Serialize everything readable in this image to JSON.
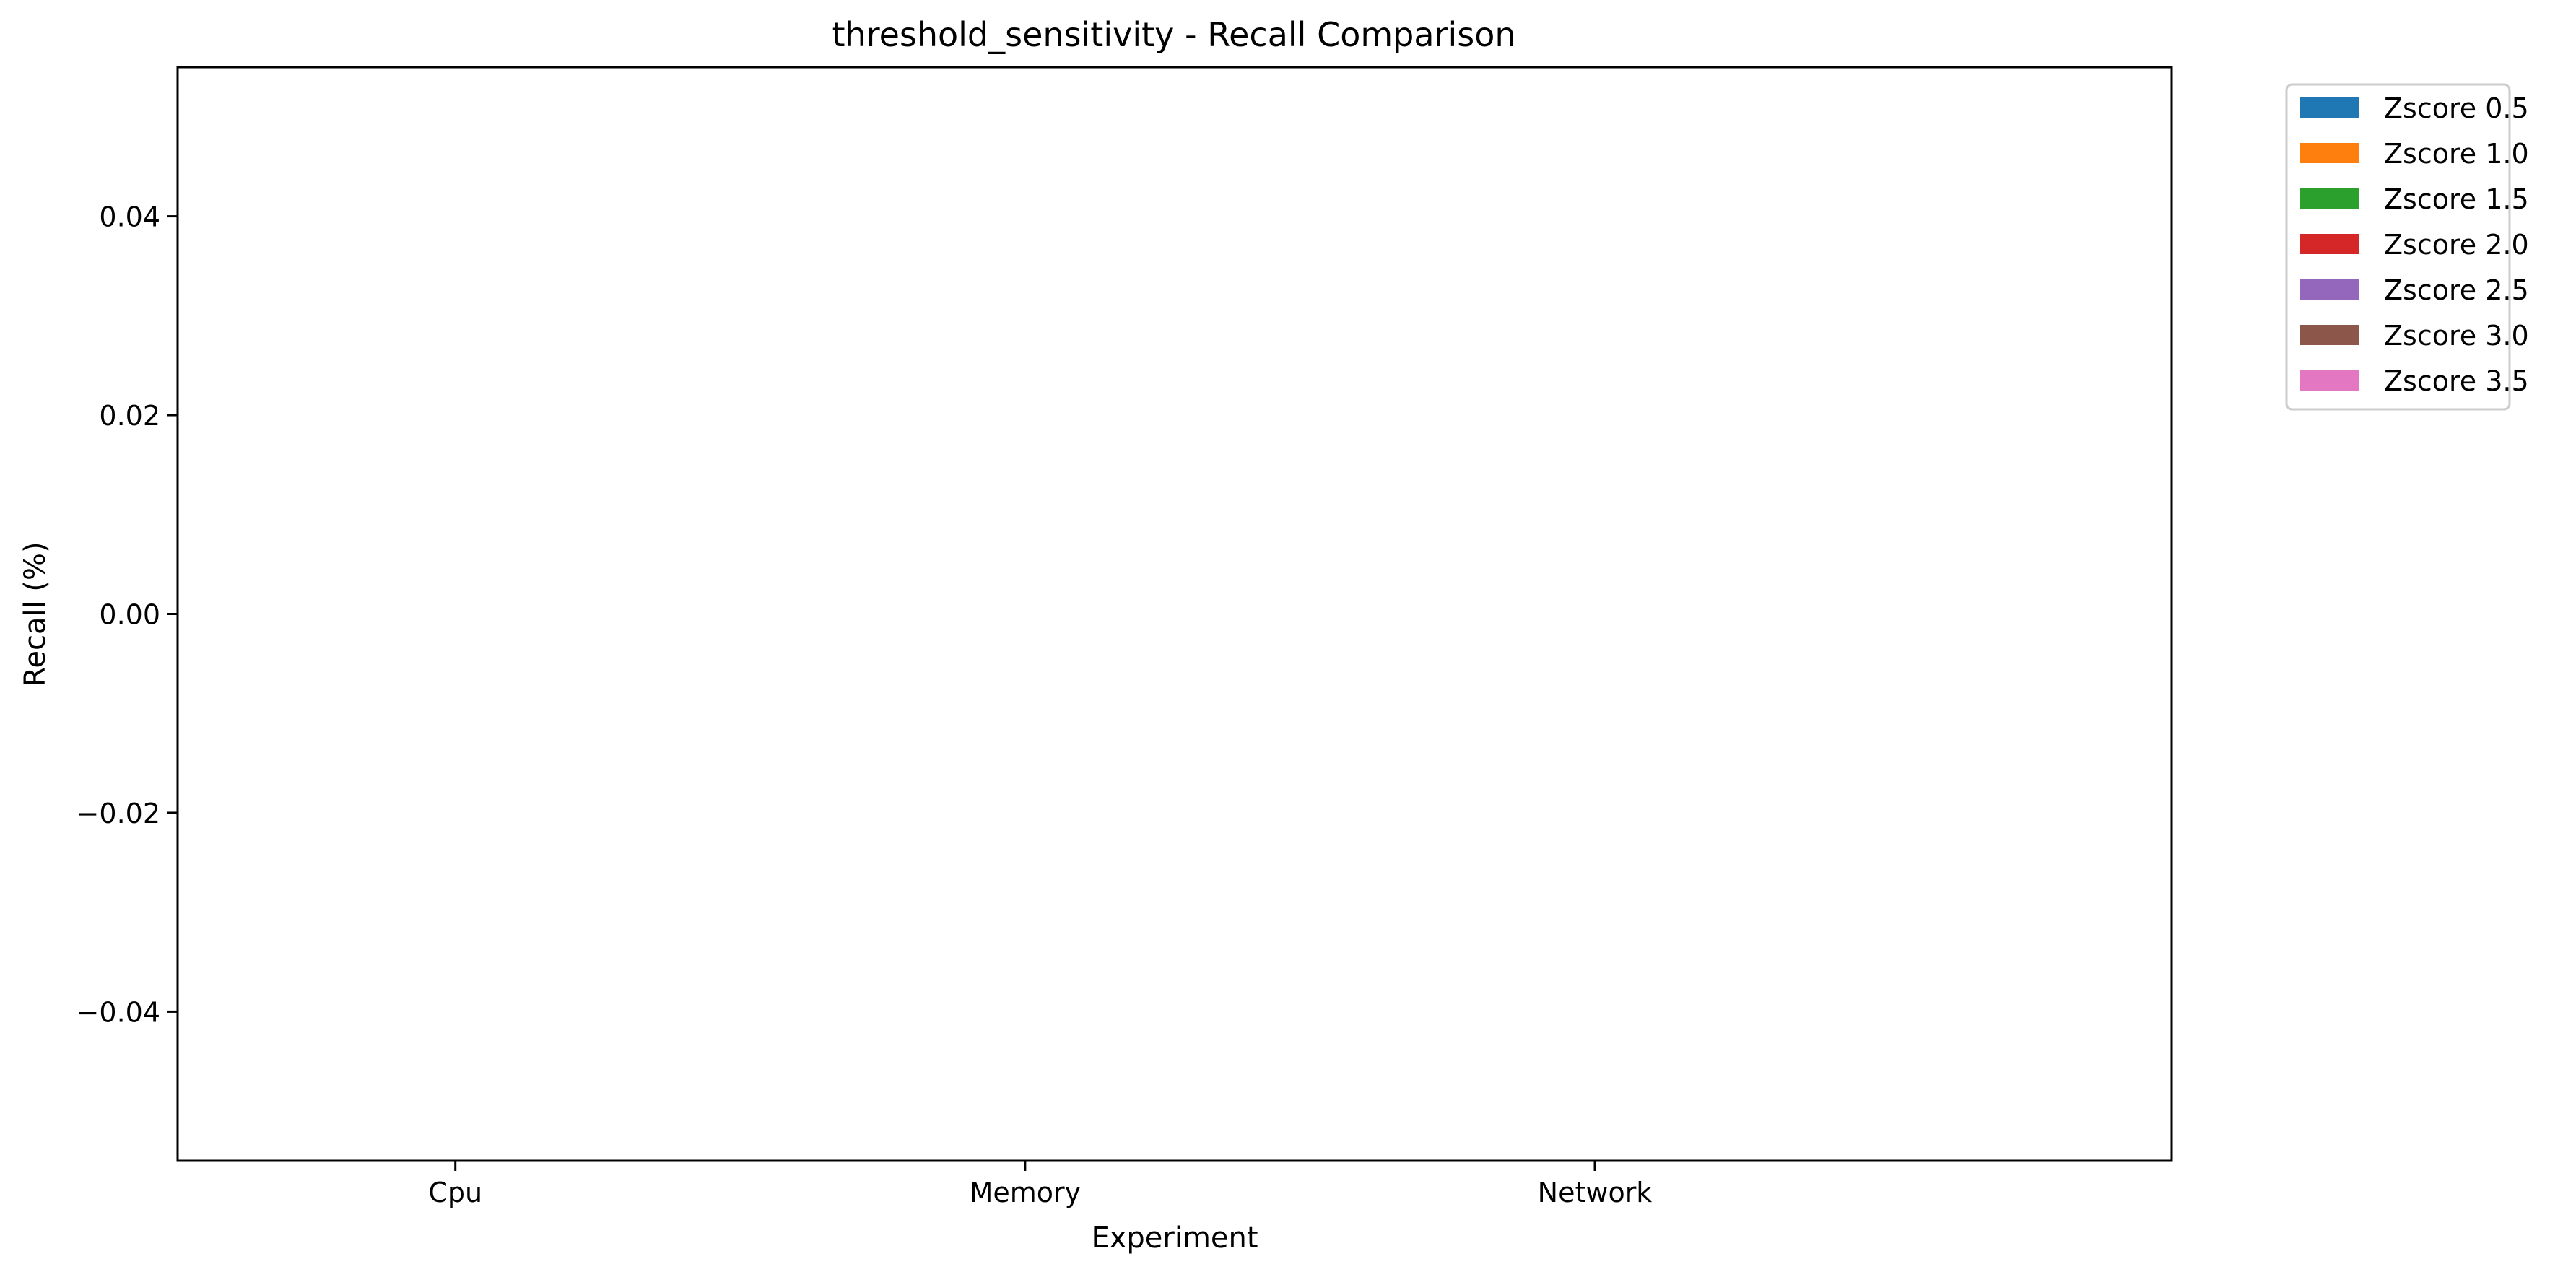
{
  "chart_data": {
    "type": "bar",
    "title": "threshold_sensitivity - Recall Comparison",
    "xlabel": "Experiment",
    "ylabel": "Recall (%)",
    "categories": [
      "Cpu",
      "Memory",
      "Network"
    ],
    "ylim": [
      -0.055,
      0.055
    ],
    "yticks": [
      -0.04,
      -0.02,
      0.0,
      0.02,
      0.04
    ],
    "ytick_labels": [
      "−0.04",
      "−0.02",
      "0.00",
      "0.02",
      "0.04"
    ],
    "grid": false,
    "legend_position": "outside-top-right",
    "series": [
      {
        "name": "Zscore 0.5",
        "color": "#1f77b4",
        "values": [
          0,
          0,
          0
        ]
      },
      {
        "name": "Zscore 1.0",
        "color": "#ff7f0e",
        "values": [
          0,
          0,
          0
        ]
      },
      {
        "name": "Zscore 1.5",
        "color": "#2ca02c",
        "values": [
          0,
          0,
          0
        ]
      },
      {
        "name": "Zscore 2.0",
        "color": "#d62728",
        "values": [
          0,
          0,
          0
        ]
      },
      {
        "name": "Zscore 2.5",
        "color": "#9467bd",
        "values": [
          0,
          0,
          0
        ]
      },
      {
        "name": "Zscore 3.0",
        "color": "#8c564b",
        "values": [
          0,
          0,
          0
        ]
      },
      {
        "name": "Zscore 3.5",
        "color": "#e377c2",
        "values": [
          0,
          0,
          0
        ]
      }
    ]
  }
}
